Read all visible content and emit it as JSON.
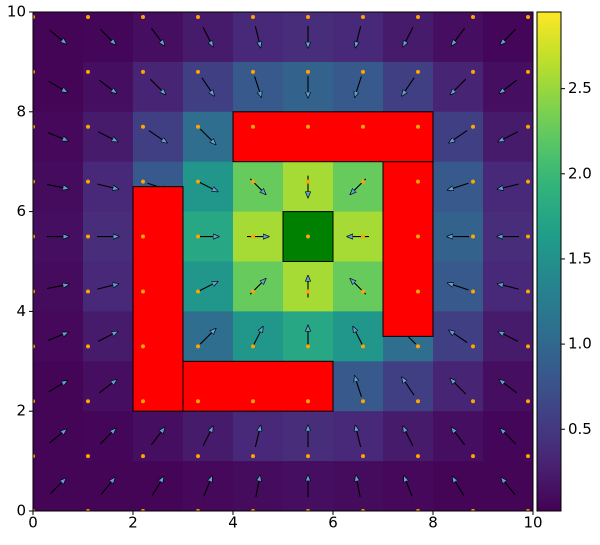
{
  "chart_data": {
    "type": "heatmap",
    "xlim": [
      0,
      10
    ],
    "ylim": [
      0,
      10
    ],
    "xticks": [
      0,
      2,
      4,
      6,
      8,
      10
    ],
    "yticks": [
      0,
      2,
      4,
      6,
      8,
      10
    ],
    "x": [
      0.5,
      1.5,
      2.5,
      3.5,
      4.5,
      5.5,
      6.5,
      7.5,
      8.5,
      9.5
    ],
    "y": [
      9.5,
      8.5,
      7.5,
      6.5,
      5.5,
      4.5,
      3.5,
      2.5,
      1.5,
      0.5
    ],
    "values": [
      [
        0.05,
        0.06,
        0.13,
        0.24,
        0.35,
        0.39,
        0.35,
        0.24,
        0.13,
        0.06
      ],
      [
        0.05,
        0.13,
        0.31,
        0.57,
        0.83,
        0.94,
        0.83,
        0.57,
        0.31,
        0.13
      ],
      [
        0.08,
        0.24,
        0.57,
        1.07,
        1.55,
        1.76,
        1.55,
        1.07,
        0.57,
        0.24
      ],
      [
        0.11,
        0.35,
        0.83,
        1.55,
        2.26,
        2.56,
        2.26,
        1.55,
        0.83,
        0.35
      ],
      [
        0.13,
        0.39,
        0.94,
        1.76,
        2.56,
        2.9,
        2.56,
        1.76,
        0.94,
        0.39
      ],
      [
        0.11,
        0.35,
        0.83,
        1.55,
        2.26,
        2.56,
        2.26,
        1.55,
        0.83,
        0.35
      ],
      [
        0.08,
        0.24,
        0.57,
        1.07,
        1.55,
        1.76,
        1.55,
        1.07,
        0.57,
        0.24
      ],
      [
        0.05,
        0.13,
        0.31,
        0.57,
        0.83,
        0.94,
        0.83,
        0.57,
        0.31,
        0.13
      ],
      [
        0.05,
        0.06,
        0.13,
        0.24,
        0.35,
        0.39,
        0.35,
        0.24,
        0.13,
        0.06
      ],
      [
        0.05,
        0.05,
        0.05,
        0.08,
        0.11,
        0.13,
        0.11,
        0.08,
        0.05,
        0.05
      ]
    ],
    "angles": [
      [
        -39,
        -45,
        -53,
        -63,
        -76,
        -90,
        -104,
        -117,
        -127,
        -135
      ],
      [
        -31,
        -37,
        -45,
        -56,
        -72,
        -90,
        -108,
        -124,
        -135,
        -143
      ],
      [
        -22,
        -27,
        -34,
        -45,
        -63,
        -90,
        -117,
        -135,
        -146,
        -153
      ],
      [
        -11,
        -14,
        -18,
        -27,
        -45,
        -90,
        -135,
        -153,
        -162,
        -166
      ],
      [
        0,
        0,
        0,
        0,
        0,
        null,
        180,
        180,
        180,
        180
      ],
      [
        11,
        14,
        18,
        27,
        45,
        90,
        135,
        153,
        162,
        166
      ],
      [
        22,
        27,
        34,
        45,
        63,
        90,
        117,
        135,
        146,
        153
      ],
      [
        31,
        37,
        45,
        56,
        72,
        90,
        108,
        124,
        135,
        143
      ],
      [
        39,
        45,
        53,
        63,
        76,
        90,
        104,
        117,
        127,
        135
      ],
      [
        45,
        51,
        59,
        68,
        79,
        90,
        101,
        112,
        121,
        129
      ]
    ],
    "colormap": "viridis",
    "clim": [
      0.02,
      2.95
    ],
    "cticks": [
      0.5,
      {
        "value": 1.0,
        "label": "1.0"
      },
      1.5,
      {
        "value": 2.0,
        "label": "2.0"
      },
      2.5
    ],
    "obstacles": [
      {
        "x": [
          4,
          8
        ],
        "y": [
          7,
          8
        ],
        "color": "#ff0000"
      },
      {
        "x": [
          7,
          8
        ],
        "y": [
          3.5,
          7
        ],
        "color": "#ff0000"
      },
      {
        "x": [
          2,
          3
        ],
        "y": [
          2,
          6.5
        ],
        "color": "#ff0000"
      },
      {
        "x": [
          3,
          6
        ],
        "y": [
          2,
          3
        ],
        "color": "#ff0000"
      },
      {
        "x": [
          5,
          6
        ],
        "y": [
          5,
          6
        ],
        "color": "#008000"
      }
    ],
    "points": {
      "x": [
        0,
        1.1,
        2.2,
        3.3,
        4.4,
        5.5,
        6.6,
        7.7,
        8.8,
        9.9
      ],
      "y": [
        0,
        1.1,
        2.2,
        3.3,
        4.4,
        5.5,
        6.6,
        7.7,
        8.8,
        9.9
      ],
      "color": "#ffa500"
    }
  }
}
